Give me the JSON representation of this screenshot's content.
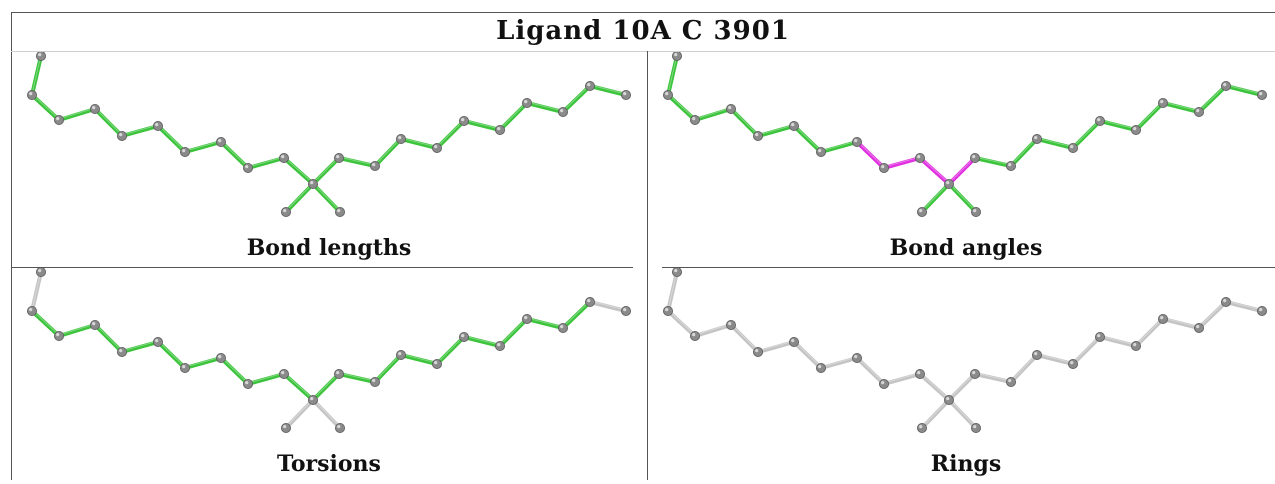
{
  "title": "Ligand 10A C 3901",
  "colors": {
    "ok": "#3cc43c",
    "outlier": "#e030e0",
    "neutral": "#c4c4c4",
    "atom": "#8a8a8a",
    "border": "#555555"
  },
  "panels": [
    {
      "caption": "Bond lengths",
      "default_color": "ok",
      "overrides": {},
      "atom_color": "atom"
    },
    {
      "caption": "Bond angles",
      "default_color": "ok",
      "overrides": {
        "7-8": "outlier",
        "8-9": "outlier",
        "9-10": "outlier",
        "10-11": "outlier"
      },
      "atom_color": "atom"
    },
    {
      "caption": "Torsions",
      "default_color": "ok",
      "overrides": {
        "0-1": "neutral",
        "18-19": "neutral",
        "9-20": "neutral",
        "9-21": "neutral"
      },
      "atom_color": "atom"
    },
    {
      "caption": "Rings",
      "default_color": "neutral",
      "overrides": {},
      "atom_color": "atom"
    }
  ]
}
